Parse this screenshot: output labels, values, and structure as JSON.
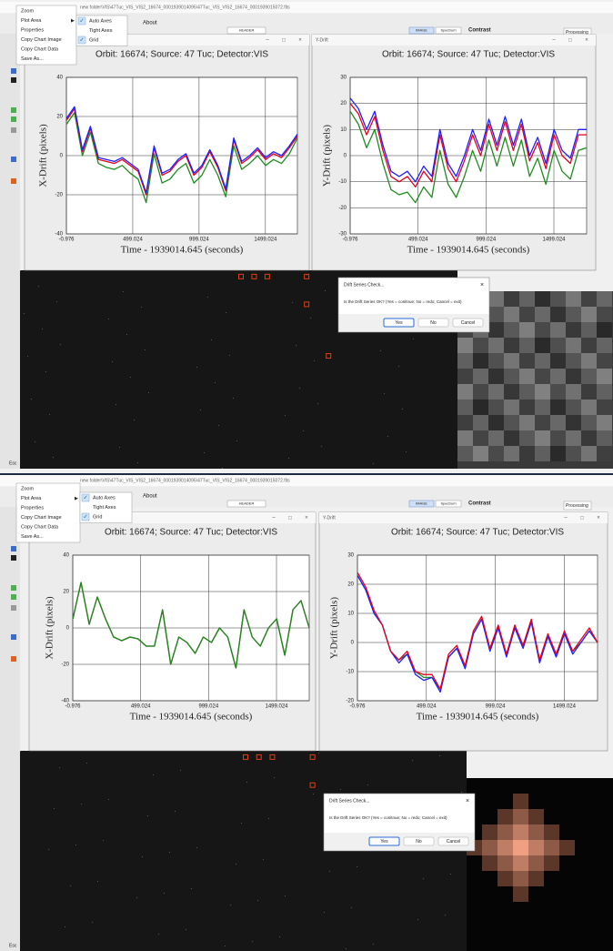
{
  "screens": [
    {
      "file_path": "new folder\\VIS\\47Tuc_VIS_VIS2_16674_0001939014095\\47Tuc_VIS_VIS2_16674_0001939015072.fits",
      "toolbar": {
        "about": "About",
        "header": "HEADER",
        "image": "IMAGE",
        "spectrum": "Spectrum",
        "contrast": "Contrast",
        "processing": "Processing"
      },
      "menu": {
        "items": [
          "Zoom",
          "Plot Area",
          "Properties",
          "Copy Chart Image",
          "Copy Chart Data",
          "Save As..."
        ]
      },
      "submenu": {
        "items": [
          {
            "label": "Auto Axes",
            "checked": true
          },
          {
            "label": "Tight Axes",
            "checked": false
          },
          {
            "label": "Grid",
            "checked": true
          }
        ]
      },
      "charts": [
        {
          "type": "line",
          "title": "Orbit: 16674; Source: 47 Tuc; Detector:VIS",
          "x_label": "Time - 1939014.645 (seconds)",
          "y_label": "X-Drift (pixels)",
          "x": [
            0,
            60,
            120,
            180,
            240,
            300,
            360,
            420,
            480,
            540,
            600,
            660,
            720,
            780,
            840,
            900,
            960,
            1020,
            1080,
            1140,
            1200,
            1260,
            1320,
            1380,
            1440,
            1500,
            1560,
            1620,
            1680,
            1740
          ],
          "xlim": [
            -0.976,
            1740
          ],
          "xticks": [
            -0.976,
            499.024,
            999.024,
            1499.024
          ],
          "ylim": [
            -40,
            40
          ],
          "yticks": [
            -40,
            -20,
            0,
            20,
            40
          ],
          "grid": true,
          "series": [
            {
              "color": "#1e8c1e",
              "values": [
                16,
                22,
                0,
                12,
                -4,
                -6,
                -7,
                -5,
                -9,
                -12,
                -24,
                1,
                -14,
                -12,
                -7,
                -4,
                -14,
                -10,
                -2,
                -10,
                -21,
                5,
                -7,
                -4,
                0,
                -5,
                -2,
                -4,
                1,
                9
              ]
            },
            {
              "color": "#e8001c",
              "values": [
                18,
                24,
                2,
                14,
                -2,
                -3,
                -4,
                -2,
                -5,
                -8,
                -20,
                4,
                -10,
                -8,
                -3,
                0,
                -10,
                -6,
                2,
                -6,
                -18,
                8,
                -4,
                -1,
                3,
                -2,
                1,
                -1,
                4,
                10
              ]
            },
            {
              "color": "#1f1fff",
              "values": [
                19,
                25,
                3,
                15,
                -1,
                -2,
                -3,
                -1,
                -4,
                -7,
                -19,
                5,
                -9,
                -7,
                -2,
                1,
                -9,
                -5,
                3,
                -5,
                -17,
                9,
                -3,
                0,
                4,
                -1,
                2,
                0,
                5,
                11
              ]
            }
          ]
        },
        {
          "type": "line",
          "window_title": "Y-Drift",
          "title": "Orbit: 16674; Source: 47 Tuc; Detector:VIS",
          "x_label": "Time - 1939014.645 (seconds)",
          "y_label": "Y-Drift (pixels)",
          "x": [
            0,
            60,
            120,
            180,
            240,
            300,
            360,
            420,
            480,
            540,
            600,
            660,
            720,
            780,
            840,
            900,
            960,
            1020,
            1080,
            1140,
            1200,
            1260,
            1320,
            1380,
            1440,
            1500,
            1560,
            1620,
            1680,
            1740
          ],
          "xlim": [
            -0.976,
            1740
          ],
          "xticks": [
            -0.976,
            499.024,
            999.024,
            1499.024
          ],
          "ylim": [
            -30,
            30
          ],
          "yticks": [
            -30,
            -20,
            -10,
            0,
            10,
            20,
            30
          ],
          "grid": true,
          "series": [
            {
              "color": "#1e8c1e",
              "values": [
                17,
                12,
                3,
                10,
                -3,
                -13,
                -15,
                -14,
                -18,
                -12,
                -16,
                2,
                -11,
                -16,
                -8,
                2,
                -6,
                6,
                -4,
                7,
                -4,
                6,
                -8,
                -1,
                -11,
                2,
                -6,
                -9,
                2,
                3
              ]
            },
            {
              "color": "#e8001c",
              "values": [
                20,
                16,
                8,
                15,
                2,
                -8,
                -10,
                -8,
                -12,
                -6,
                -10,
                8,
                -5,
                -10,
                -2,
                8,
                0,
                12,
                2,
                13,
                2,
                12,
                -2,
                5,
                -5,
                8,
                0,
                -3,
                8,
                8
              ]
            },
            {
              "color": "#1f1fff",
              "values": [
                22,
                18,
                10,
                17,
                4,
                -6,
                -8,
                -6,
                -10,
                -4,
                -8,
                10,
                -3,
                -8,
                0,
                10,
                2,
                14,
                4,
                15,
                4,
                14,
                0,
                7,
                -3,
                10,
                2,
                -1,
                10,
                10
              ]
            }
          ]
        }
      ],
      "dialog": {
        "title": "Drift Series Check...",
        "message": "Is the Drift Series OK? (Yes = conitnue; No = redo; Cancel = exit)",
        "buttons": [
          "Yes",
          "No",
          "Cancel"
        ]
      },
      "esc": "Esc"
    },
    {
      "file_path": "new folder\\VIS\\47Tuc_VIS_VIS2_16674_0001939014095\\47Tuc_VIS_VIS2_16674_0001939015072.fits",
      "toolbar": {
        "about": "About",
        "header": "HEADER",
        "image": "IMAGE",
        "spectrum": "Spectrum",
        "contrast": "Contrast",
        "processing": "Processing"
      },
      "menu": {
        "items": [
          "Zoom",
          "Plot Area",
          "Properties",
          "Copy Chart Image",
          "Copy Chart Data",
          "Save As..."
        ]
      },
      "submenu": {
        "items": [
          {
            "label": "Auto Axes",
            "checked": true
          },
          {
            "label": "Tight Axes",
            "checked": false
          },
          {
            "label": "Grid",
            "checked": true
          }
        ]
      },
      "charts": [
        {
          "type": "line",
          "title": "Orbit: 16674; Source: 47 Tuc; Detector:VIS",
          "x_label": "Time - 1939014.645 (seconds)",
          "y_label": "X-Drift (pixels)",
          "x": [
            0,
            60,
            120,
            180,
            240,
            300,
            360,
            420,
            480,
            540,
            600,
            660,
            720,
            780,
            840,
            900,
            960,
            1020,
            1080,
            1140,
            1200,
            1260,
            1320,
            1380,
            1440,
            1500,
            1560,
            1620,
            1680,
            1740
          ],
          "xlim": [
            -0.976,
            1740
          ],
          "xticks": [
            -0.976,
            499.024,
            999.024,
            1499.024
          ],
          "ylim": [
            -40,
            40
          ],
          "yticks": [
            -40,
            -20,
            0,
            20,
            40
          ],
          "grid": true,
          "series": [
            {
              "color": "#5a1a00",
              "values": [
                5,
                25,
                2,
                17,
                5,
                -5,
                -7,
                -5,
                -6,
                -10,
                -10,
                10,
                -20,
                -5,
                -8,
                -14,
                -5,
                -8,
                0,
                -5,
                -22,
                10,
                -5,
                -10,
                0,
                5,
                -15,
                10,
                15,
                0
              ]
            },
            {
              "color": "#1e8c1e",
              "values": [
                5,
                25,
                2,
                17,
                5,
                -5,
                -7,
                -5,
                -6,
                -10,
                -10,
                10,
                -20,
                -5,
                -8,
                -14,
                -5,
                -8,
                0,
                -5,
                -22,
                10,
                -5,
                -10,
                0,
                5,
                -15,
                10,
                15,
                0
              ]
            }
          ]
        },
        {
          "type": "line",
          "window_title": "Y-Drift",
          "title": "Orbit: 16674; Source: 47 Tuc; Detector:VIS",
          "x_label": "Time - 1939014.645 (seconds)",
          "y_label": "Y-Drift (pixels)",
          "x": [
            0,
            60,
            120,
            180,
            240,
            300,
            360,
            420,
            480,
            540,
            600,
            660,
            720,
            780,
            840,
            900,
            960,
            1020,
            1080,
            1140,
            1200,
            1260,
            1320,
            1380,
            1440,
            1500,
            1560,
            1620,
            1680,
            1740
          ],
          "xlim": [
            -0.976,
            1740
          ],
          "xticks": [
            -0.976,
            499.024,
            999.024,
            1499.024
          ],
          "ylim": [
            -20,
            30
          ],
          "yticks": [
            -20,
            -10,
            0,
            10,
            20,
            30
          ],
          "grid": true,
          "series": [
            {
              "color": "#1e8c1e",
              "values": [
                23,
                18,
                10,
                6,
                -3,
                -6,
                -4,
                -10,
                -12,
                -12,
                -16,
                -5,
                -2,
                -8,
                3,
                8,
                -2,
                5,
                -4,
                5,
                -1,
                7,
                -6,
                2,
                -4,
                3,
                -3,
                0,
                4,
                0
              ]
            },
            {
              "color": "#1f1fff",
              "values": [
                23,
                18,
                10,
                6,
                -3,
                -7,
                -4,
                -11,
                -13,
                -12,
                -17,
                -5,
                -2,
                -9,
                3,
                8,
                -3,
                5,
                -5,
                5,
                -2,
                7,
                -7,
                2,
                -5,
                3,
                -4,
                0,
                4,
                0
              ]
            },
            {
              "color": "#e8001c",
              "values": [
                24,
                19,
                11,
                6,
                -3,
                -6,
                -3,
                -10,
                -11,
                -11,
                -16,
                -4,
                -1,
                -8,
                4,
                9,
                -2,
                6,
                -4,
                6,
                -1,
                8,
                -6,
                3,
                -4,
                4,
                -3,
                1,
                5,
                0
              ]
            }
          ]
        }
      ],
      "dialog": {
        "title": "Drift Series Check...",
        "message": "Is the Drift Series OK? (Yes = conitnue; No = redo; Cancel = exit)",
        "buttons": [
          "Yes",
          "No",
          "Cancel"
        ]
      },
      "esc": "Esc"
    }
  ]
}
